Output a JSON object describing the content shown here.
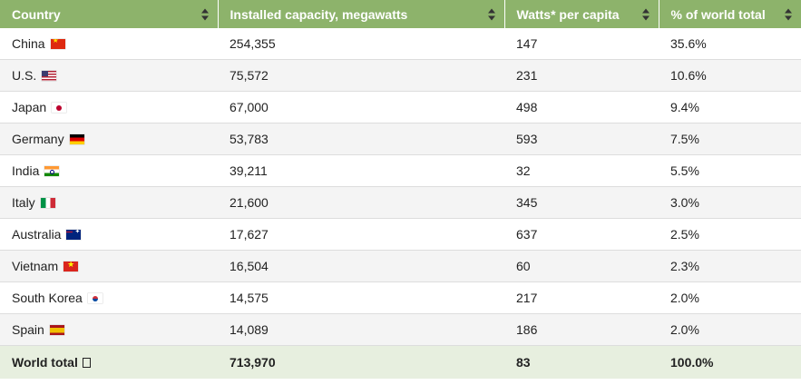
{
  "table": {
    "headers": [
      "Country",
      "Installed capacity, megawatts",
      "Watts* per capita",
      "% of world total"
    ],
    "rows": [
      {
        "country": "China",
        "flag_icon": "china-flag-icon",
        "capacity": "254,355",
        "per_capita": "147",
        "share": "35.6%"
      },
      {
        "country": "U.S.",
        "flag_icon": "us-flag-icon",
        "capacity": "75,572",
        "per_capita": "231",
        "share": "10.6%"
      },
      {
        "country": "Japan",
        "flag_icon": "japan-flag-icon",
        "capacity": "67,000",
        "per_capita": "498",
        "share": "9.4%"
      },
      {
        "country": "Germany",
        "flag_icon": "germany-flag-icon",
        "capacity": "53,783",
        "per_capita": "593",
        "share": "7.5%"
      },
      {
        "country": "India",
        "flag_icon": "india-flag-icon",
        "capacity": "39,211",
        "per_capita": "32",
        "share": "5.5%"
      },
      {
        "country": "Italy",
        "flag_icon": "italy-flag-icon",
        "capacity": "21,600",
        "per_capita": "345",
        "share": "3.0%"
      },
      {
        "country": "Australia",
        "flag_icon": "australia-flag-icon",
        "capacity": "17,627",
        "per_capita": "637",
        "share": "2.5%"
      },
      {
        "country": "Vietnam",
        "flag_icon": "vietnam-flag-icon",
        "capacity": "16,504",
        "per_capita": "60",
        "share": "2.3%"
      },
      {
        "country": "South Korea",
        "flag_icon": "south-korea-flag-icon",
        "capacity": "14,575",
        "per_capita": "217",
        "share": "2.0%"
      },
      {
        "country": "Spain",
        "flag_icon": "spain-flag-icon",
        "capacity": "14,089",
        "per_capita": "186",
        "share": "2.0%"
      }
    ],
    "total": {
      "country": "World total",
      "icon": "globe-icon",
      "capacity": "713,970",
      "per_capita": "83",
      "share": "100.0%"
    }
  },
  "colors": {
    "header_background": "#8db36b",
    "header_text": "#ffffff",
    "footer_background": "#e7efdf",
    "stripe": "#f4f4f4"
  }
}
